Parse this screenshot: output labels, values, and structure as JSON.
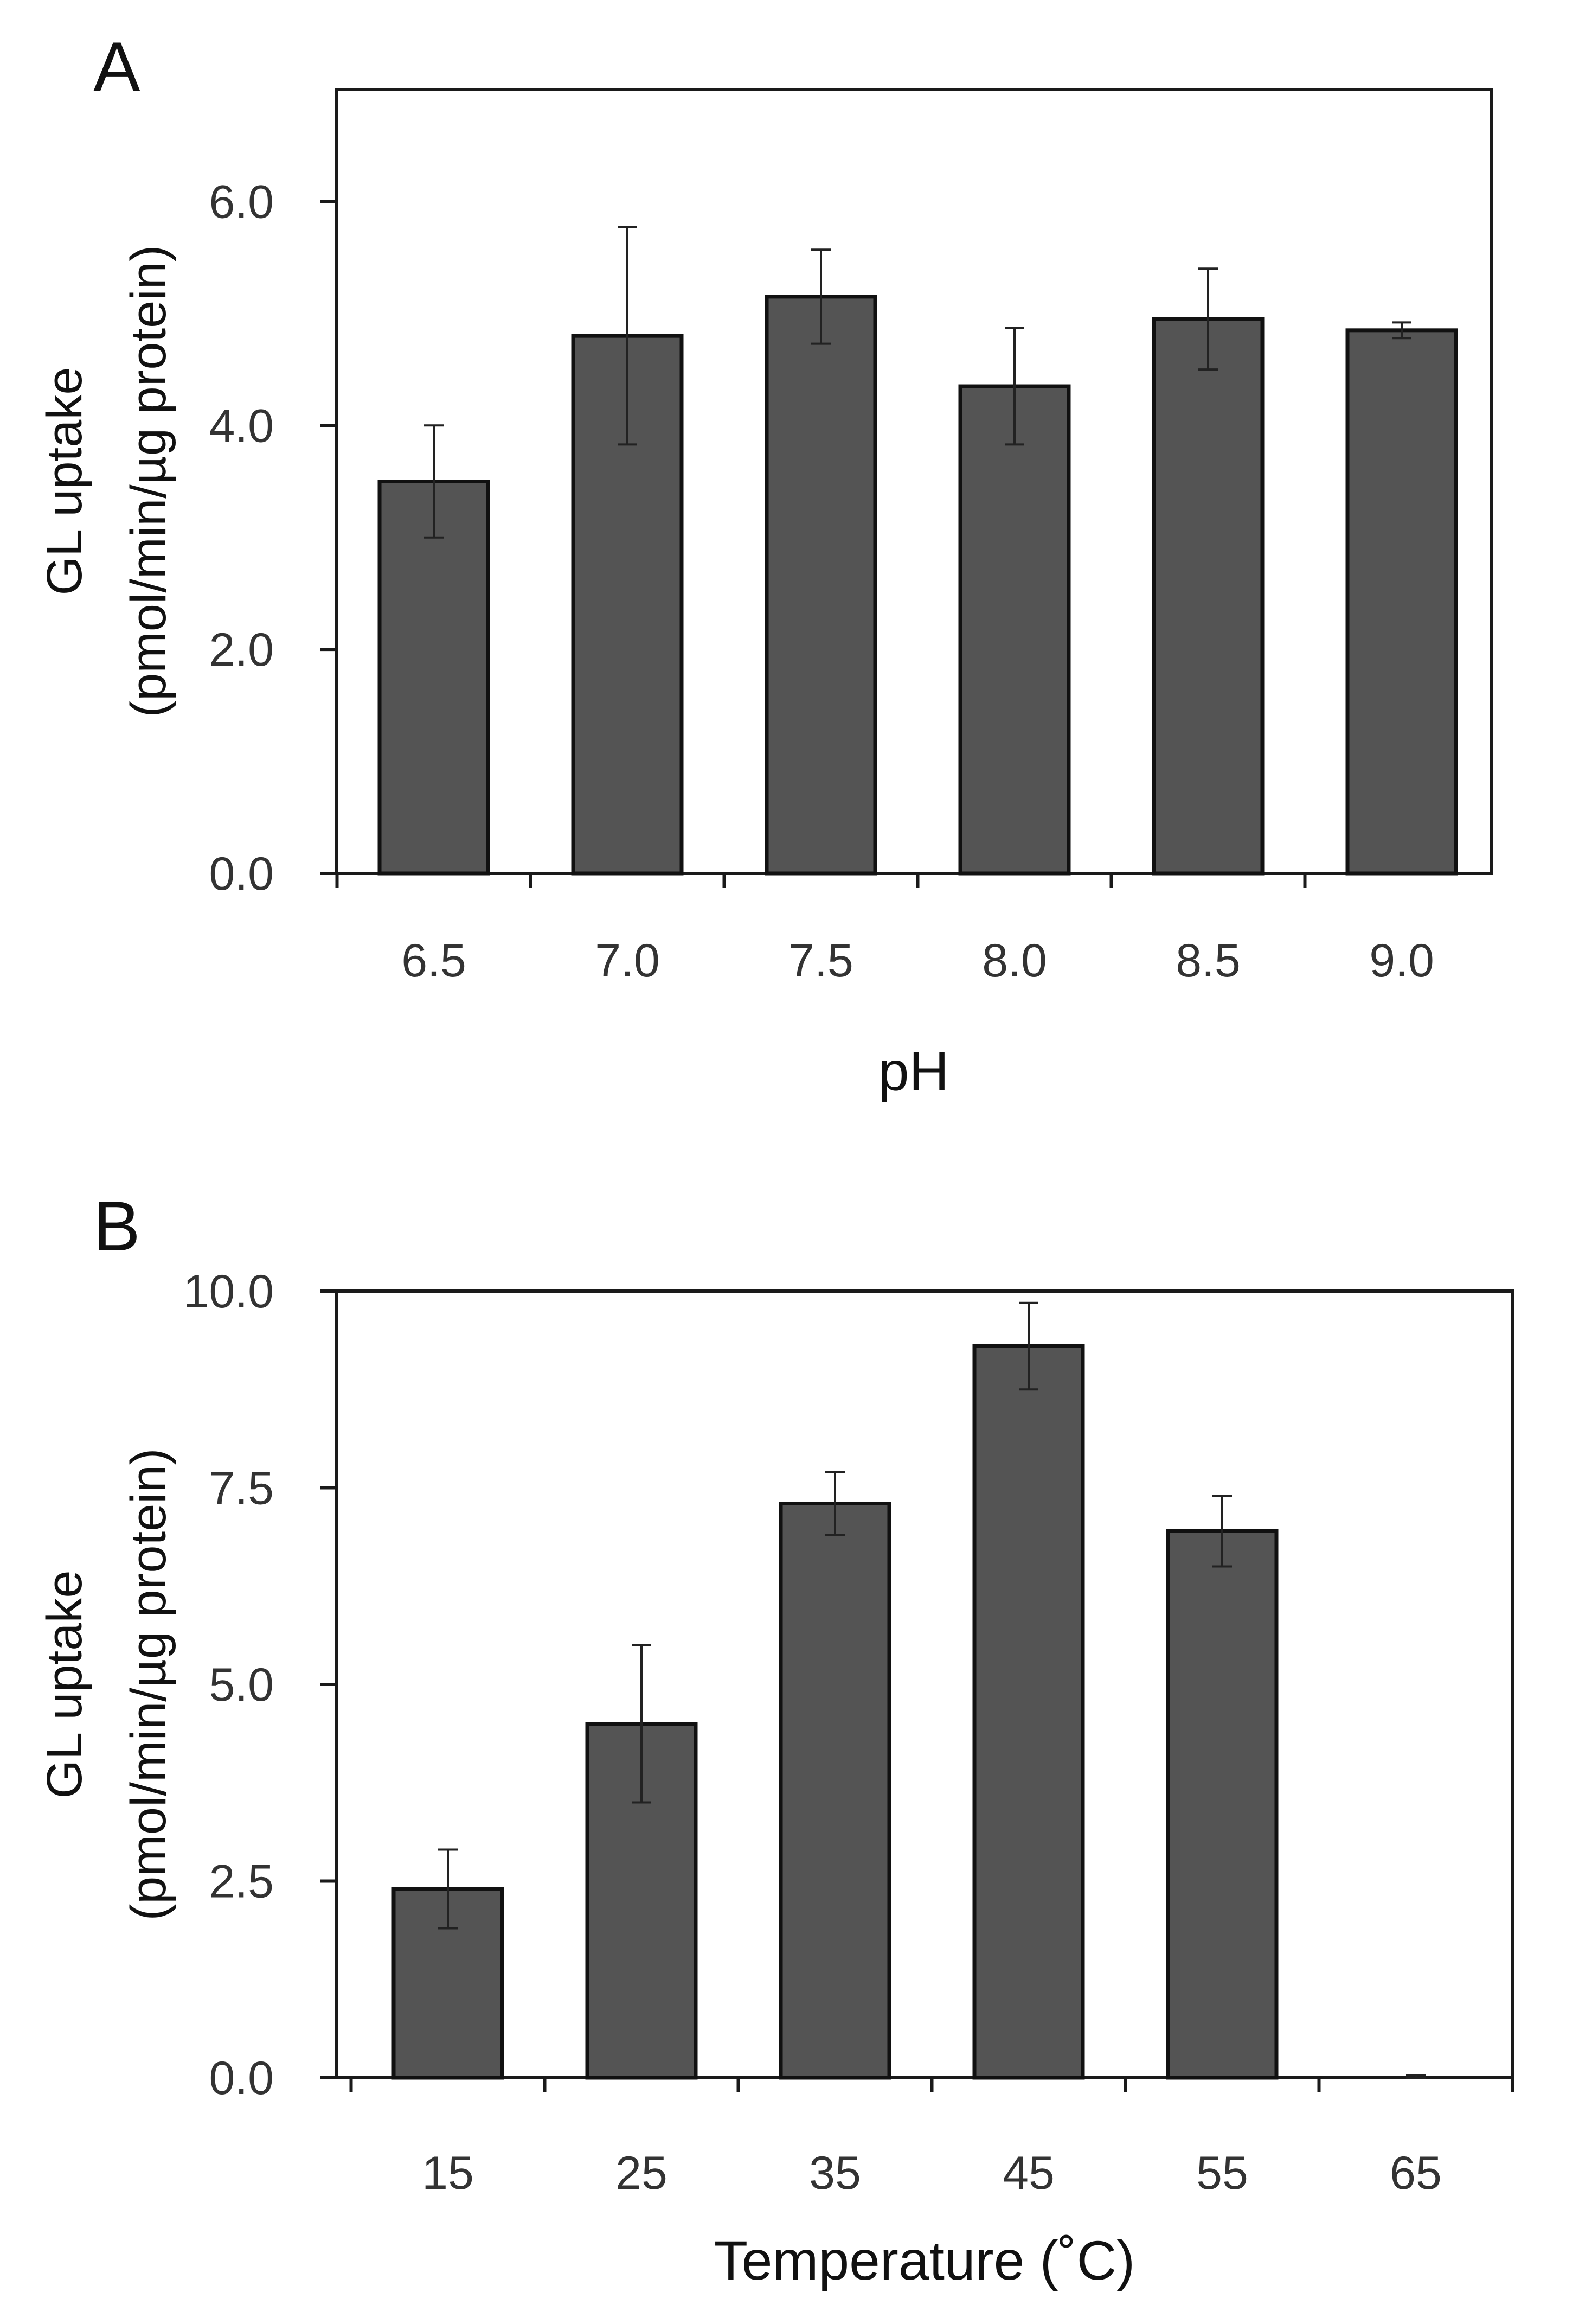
{
  "chart_data": [
    {
      "panel": "A",
      "type": "bar",
      "title": "",
      "xlabel": "pH",
      "ylabel_lines": [
        "GL uptake",
        "(pmol/min/µg protein)"
      ],
      "categories": [
        "6.5",
        "7.0",
        "7.5",
        "8.0",
        "8.5",
        "9.0"
      ],
      "values": [
        3.5,
        4.8,
        5.15,
        4.35,
        4.95,
        4.85
      ],
      "errors": [
        0.5,
        0.97,
        0.42,
        0.52,
        0.45,
        0.07
      ],
      "yticks": [
        "0.0",
        "2.0",
        "4.0",
        "6.0"
      ],
      "ytick_values": [
        0,
        2,
        4,
        6
      ],
      "ylim": [
        0,
        7
      ],
      "grid": false,
      "colors": {
        "bar": "#545454",
        "edge": "#111111"
      }
    },
    {
      "panel": "B",
      "type": "bar",
      "title": "",
      "xlabel": "Temperature (˚C)",
      "ylabel_lines": [
        "GL uptake",
        "(pmol/min/µg protein)"
      ],
      "categories": [
        "15",
        "25",
        "35",
        "45",
        "55",
        "65"
      ],
      "values": [
        2.4,
        4.5,
        7.3,
        9.3,
        6.95,
        0.0
      ],
      "errors": [
        0.5,
        1.0,
        0.4,
        0.55,
        0.45,
        0.03
      ],
      "yticks": [
        "0.0",
        "2.5",
        "5.0",
        "7.5",
        "10.0"
      ],
      "ytick_values": [
        0,
        2.5,
        5,
        7.5,
        10
      ],
      "ylim": [
        0,
        10
      ],
      "grid": false,
      "colors": {
        "bar": "#545454",
        "edge": "#111111"
      }
    }
  ]
}
